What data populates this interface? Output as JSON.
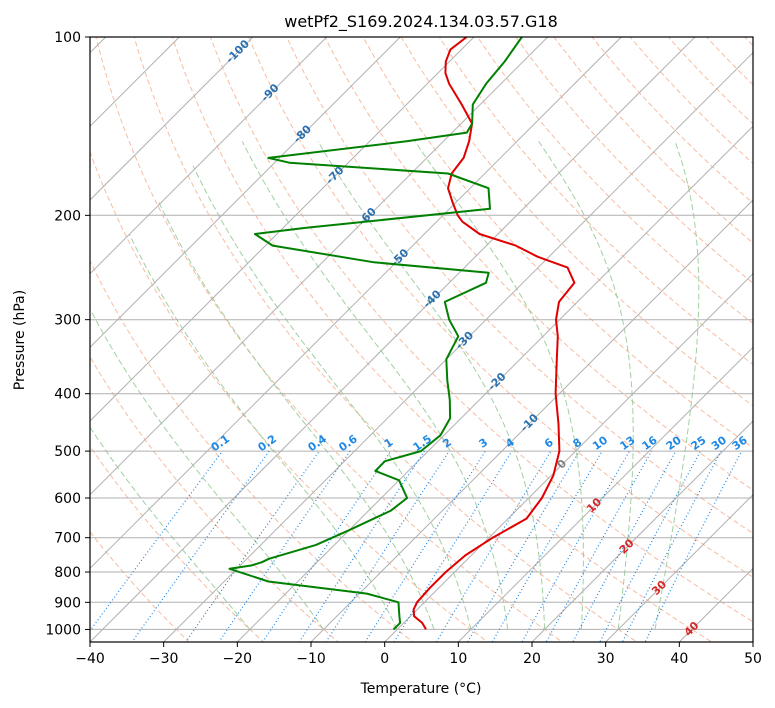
{
  "chart_data": {
    "type": "line",
    "subtype": "skew-T log-p diagram",
    "title": "wetPf2_S169.2024.134.03.57.G18",
    "xlabel": "Temperature (°C)",
    "ylabel": "Pressure (hPa)",
    "xlim": [
      -40,
      50
    ],
    "ylim": [
      1050,
      100
    ],
    "y_scale": "log",
    "grid": true,
    "x_ticks": [
      -40,
      -30,
      -20,
      -10,
      0,
      10,
      20,
      30,
      40,
      50
    ],
    "y_ticks": [
      1000,
      900,
      800,
      700,
      600,
      500,
      400,
      300,
      200,
      100
    ],
    "isotherm_labels": [
      "-100",
      "-90",
      "-80",
      "-70",
      "-60",
      "-50",
      "-40",
      "-30",
      "-20",
      "-10",
      "0",
      "10",
      "20",
      "30",
      "40"
    ],
    "mixing_ratio_labels": [
      "0.1",
      "0.2",
      "0.4",
      "0.6",
      "1",
      "1.5",
      "2",
      "3",
      "4",
      "6",
      "8",
      "10",
      "13",
      "16",
      "20",
      "25",
      "30",
      "36"
    ],
    "colors": {
      "temperature": "#e00000",
      "dewpoint": "#008000",
      "isotherm_label_cold": "#2a6fb0",
      "isotherm_label_warm": "#d62728",
      "isotherm_label_zero": "#808080",
      "mixing_ratio": "#1e88e5",
      "dry_adiabat": "#f4a582",
      "moist_adiabat": "#90c890",
      "grid": "#b0b0b0"
    },
    "series": [
      {
        "name": "temperature",
        "points": [
          [
            3.9,
            1000
          ],
          [
            2.5,
            975
          ],
          [
            0.5,
            950
          ],
          [
            -0.5,
            925
          ],
          [
            -1.0,
            900
          ],
          [
            -1.2,
            850
          ],
          [
            -1.2,
            800
          ],
          [
            -0.8,
            750
          ],
          [
            0.5,
            700
          ],
          [
            2.5,
            650
          ],
          [
            1.8,
            600
          ],
          [
            0.3,
            550
          ],
          [
            -2.2,
            500
          ],
          [
            -6.0,
            450
          ],
          [
            -10.5,
            400
          ],
          [
            -15.0,
            350
          ],
          [
            -18.0,
            320
          ],
          [
            -20.5,
            300
          ],
          [
            -22.5,
            280
          ],
          [
            -23.0,
            260
          ],
          [
            -26.0,
            245
          ],
          [
            -31.5,
            235
          ],
          [
            -36.0,
            225
          ],
          [
            -42.5,
            215
          ],
          [
            -46.5,
            205
          ],
          [
            -48.0,
            200
          ],
          [
            -50.5,
            190
          ],
          [
            -53.0,
            180
          ],
          [
            -54.5,
            170
          ],
          [
            -55.0,
            160
          ],
          [
            -56.5,
            150
          ],
          [
            -58.5,
            140
          ],
          [
            -62.5,
            130
          ],
          [
            -67.0,
            120
          ],
          [
            -69.0,
            115
          ],
          [
            -70.5,
            110
          ],
          [
            -71.5,
            105
          ],
          [
            -71.0,
            100
          ]
        ]
      },
      {
        "name": "dewpoint",
        "points": [
          [
            -0.5,
            1000
          ],
          [
            -0.5,
            975
          ],
          [
            -1.5,
            950
          ],
          [
            -2.5,
            925
          ],
          [
            -3.5,
            900
          ],
          [
            -9.0,
            870
          ],
          [
            -24.0,
            830
          ],
          [
            -31.0,
            790
          ],
          [
            -28.5,
            780
          ],
          [
            -27.5,
            770
          ],
          [
            -27.0,
            760
          ],
          [
            -22.5,
            720
          ],
          [
            -20.0,
            680
          ],
          [
            -17.0,
            630
          ],
          [
            -16.5,
            600
          ],
          [
            -20.0,
            560
          ],
          [
            -24.5,
            540
          ],
          [
            -24.5,
            520
          ],
          [
            -21.0,
            500
          ],
          [
            -20.5,
            470
          ],
          [
            -21.5,
            440
          ],
          [
            -24.0,
            410
          ],
          [
            -27.0,
            380
          ],
          [
            -30.0,
            350
          ],
          [
            -31.5,
            320
          ],
          [
            -35.0,
            300
          ],
          [
            -38.0,
            280
          ],
          [
            -35.0,
            260
          ],
          [
            -36.0,
            250
          ],
          [
            -53.0,
            240
          ],
          [
            -69.0,
            225
          ],
          [
            -73.0,
            215
          ],
          [
            -67.0,
            210
          ],
          [
            -44.5,
            195
          ],
          [
            -47.5,
            180
          ],
          [
            -55.0,
            170
          ],
          [
            -78.0,
            163
          ],
          [
            -81.5,
            160
          ],
          [
            -65.0,
            150
          ],
          [
            -58.0,
            145
          ],
          [
            -58.5,
            140
          ],
          [
            -61.0,
            130
          ],
          [
            -62.0,
            120
          ],
          [
            -62.5,
            110
          ],
          [
            -63.5,
            100
          ]
        ]
      }
    ]
  }
}
